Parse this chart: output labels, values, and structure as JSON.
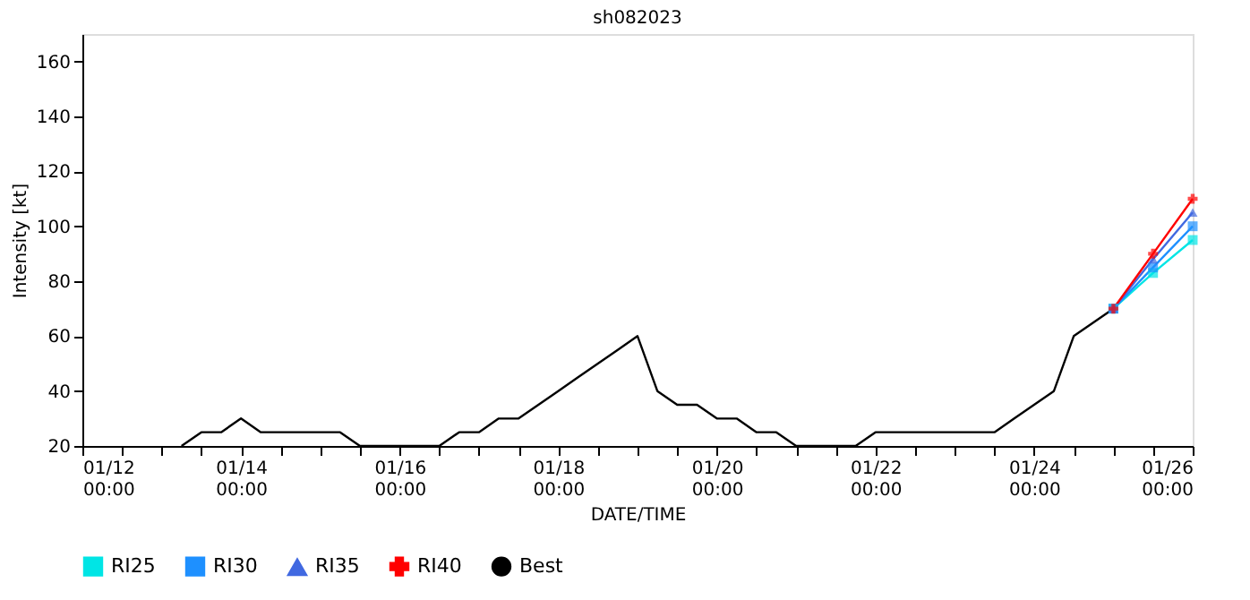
{
  "chart_data": {
    "type": "line",
    "title": "sh082023",
    "xlabel": "DATE/TIME",
    "ylabel": "Intensity [kt]",
    "xlim": [
      "2023-01-12T00:00",
      "2023-01-26T00:00"
    ],
    "xticks": [
      {
        "value": "2023-01-12T00:00",
        "label": "01/12\n00:00"
      },
      {
        "value": "2023-01-12T12:00",
        "label": null
      },
      {
        "value": "2023-01-13T00:00",
        "label": null
      },
      {
        "value": "2023-01-13T12:00",
        "label": null
      },
      {
        "value": "2023-01-14T00:00",
        "label": "01/14\n00:00"
      },
      {
        "value": "2023-01-14T12:00",
        "label": null
      },
      {
        "value": "2023-01-15T00:00",
        "label": null
      },
      {
        "value": "2023-01-15T12:00",
        "label": null
      },
      {
        "value": "2023-01-16T00:00",
        "label": "01/16\n00:00"
      },
      {
        "value": "2023-01-16T12:00",
        "label": null
      },
      {
        "value": "2023-01-17T00:00",
        "label": null
      },
      {
        "value": "2023-01-17T12:00",
        "label": null
      },
      {
        "value": "2023-01-18T00:00",
        "label": "01/18\n00:00"
      },
      {
        "value": "2023-01-18T12:00",
        "label": null
      },
      {
        "value": "2023-01-19T00:00",
        "label": null
      },
      {
        "value": "2023-01-19T12:00",
        "label": null
      },
      {
        "value": "2023-01-20T00:00",
        "label": "01/20\n00:00"
      },
      {
        "value": "2023-01-20T12:00",
        "label": null
      },
      {
        "value": "2023-01-21T00:00",
        "label": null
      },
      {
        "value": "2023-01-21T12:00",
        "label": null
      },
      {
        "value": "2023-01-22T00:00",
        "label": "01/22\n00:00"
      },
      {
        "value": "2023-01-22T12:00",
        "label": null
      },
      {
        "value": "2023-01-23T00:00",
        "label": null
      },
      {
        "value": "2023-01-23T12:00",
        "label": null
      },
      {
        "value": "2023-01-24T00:00",
        "label": "01/24\n00:00"
      },
      {
        "value": "2023-01-24T12:00",
        "label": null
      },
      {
        "value": "2023-01-25T00:00",
        "label": null
      },
      {
        "value": "2023-01-25T12:00",
        "label": null
      },
      {
        "value": "2023-01-26T00:00",
        "label": "01/26\n00:00"
      }
    ],
    "ylim": [
      20,
      170
    ],
    "yticks": [
      20,
      40,
      60,
      80,
      100,
      120,
      140,
      160
    ],
    "grid": false,
    "legend": "bottom",
    "series": [
      {
        "name": "RI25",
        "color": "#00e5e5",
        "marker": "square",
        "x": [
          "2023-01-25T00:00",
          "2023-01-25T12:00",
          "2023-01-26T00:00"
        ],
        "values": [
          70,
          83,
          95
        ]
      },
      {
        "name": "RI30",
        "color": "#1e90ff",
        "marker": "square",
        "x": [
          "2023-01-25T00:00",
          "2023-01-25T12:00",
          "2023-01-26T00:00"
        ],
        "values": [
          70,
          85,
          100
        ]
      },
      {
        "name": "RI35",
        "color": "#4169e1",
        "marker": "triangle",
        "x": [
          "2023-01-25T00:00",
          "2023-01-25T12:00",
          "2023-01-26T00:00"
        ],
        "values": [
          70,
          88,
          105
        ]
      },
      {
        "name": "RI40",
        "color": "#ff0000",
        "marker": "cross",
        "x": [
          "2023-01-25T00:00",
          "2023-01-25T12:00",
          "2023-01-26T00:00"
        ],
        "values": [
          70,
          90,
          110
        ]
      },
      {
        "name": "Best",
        "color": "#000000",
        "marker": "none",
        "x": [
          "2023-01-13T06:00",
          "2023-01-13T12:00",
          "2023-01-13T18:00",
          "2023-01-14T00:00",
          "2023-01-14T06:00",
          "2023-01-14T12:00",
          "2023-01-14T18:00",
          "2023-01-15T00:00",
          "2023-01-15T06:00",
          "2023-01-15T12:00",
          "2023-01-15T18:00",
          "2023-01-16T00:00",
          "2023-01-16T06:00",
          "2023-01-16T12:00",
          "2023-01-16T18:00",
          "2023-01-17T00:00",
          "2023-01-17T06:00",
          "2023-01-17T12:00",
          "2023-01-17T18:00",
          "2023-01-18T00:00",
          "2023-01-18T06:00",
          "2023-01-18T12:00",
          "2023-01-18T18:00",
          "2023-01-19T00:00",
          "2023-01-19T06:00",
          "2023-01-19T12:00",
          "2023-01-19T18:00",
          "2023-01-20T00:00",
          "2023-01-20T06:00",
          "2023-01-20T12:00",
          "2023-01-20T18:00",
          "2023-01-21T00:00",
          "2023-01-21T06:00",
          "2023-01-21T12:00",
          "2023-01-21T18:00",
          "2023-01-22T00:00",
          "2023-01-22T06:00",
          "2023-01-22T12:00",
          "2023-01-22T18:00",
          "2023-01-23T00:00",
          "2023-01-23T06:00",
          "2023-01-23T12:00",
          "2023-01-23T18:00",
          "2023-01-24T00:00",
          "2023-01-24T06:00",
          "2023-01-24T12:00",
          "2023-01-24T18:00",
          "2023-01-25T00:00"
        ],
        "values": [
          20,
          25,
          25,
          30,
          25,
          25,
          25,
          25,
          25,
          20,
          20,
          20,
          20,
          20,
          25,
          25,
          30,
          30,
          35,
          40,
          45,
          50,
          55,
          60,
          40,
          35,
          35,
          30,
          30,
          25,
          25,
          20,
          20,
          20,
          20,
          25,
          25,
          25,
          25,
          25,
          25,
          25,
          30,
          35,
          40,
          60,
          65,
          70
        ]
      }
    ]
  }
}
